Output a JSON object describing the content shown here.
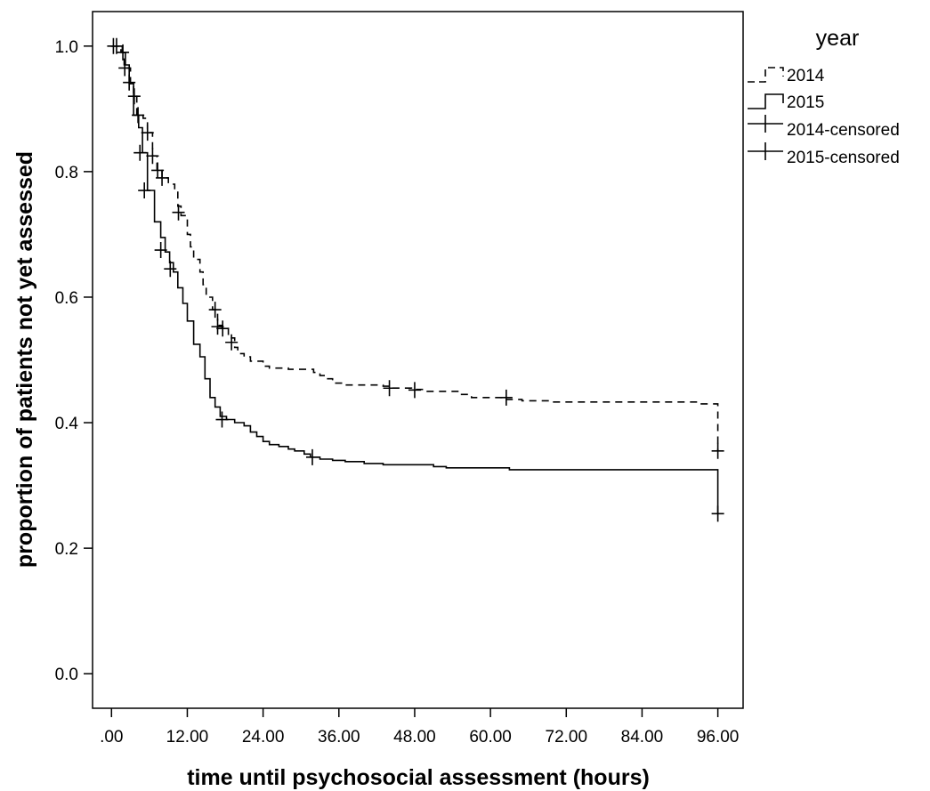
{
  "chart_data": {
    "type": "line",
    "subtype": "kaplan-meier step curves",
    "xlabel": "time until psychosocial assessment (hours)",
    "ylabel": "proportion of patients not yet assessed",
    "xlim": [
      -3,
      100
    ],
    "ylim": [
      -0.055,
      1.055
    ],
    "x_ticks": [
      0,
      12,
      24,
      36,
      48,
      60,
      72,
      84,
      96
    ],
    "x_tick_labels": [
      ".00",
      "12.00",
      "24.00",
      "36.00",
      "48.00",
      "60.00",
      "72.00",
      "84.00",
      "96.00"
    ],
    "y_ticks": [
      0.0,
      0.2,
      0.4,
      0.6,
      0.8,
      1.0
    ],
    "y_tick_labels": [
      "0.0",
      "0.2",
      "0.4",
      "0.6",
      "0.8",
      "1.0"
    ],
    "grid": false,
    "legend": {
      "title": "year",
      "position": "right, outside plot",
      "entries": [
        "2014",
        "2015",
        "2014-censored",
        "2015-censored"
      ]
    },
    "series": [
      {
        "name": "2014",
        "line_style": "dashed",
        "color": "#000000",
        "steps": [
          [
            0,
            1.0
          ],
          [
            1.5,
            0.99
          ],
          [
            2.0,
            0.965
          ],
          [
            3.0,
            0.94
          ],
          [
            3.5,
            0.92
          ],
          [
            4.0,
            0.89
          ],
          [
            5.0,
            0.885
          ],
          [
            5.7,
            0.862
          ],
          [
            6.5,
            0.825
          ],
          [
            7.2,
            0.802
          ],
          [
            8.0,
            0.79
          ],
          [
            9.0,
            0.78
          ],
          [
            10.0,
            0.77
          ],
          [
            10.5,
            0.745
          ],
          [
            11.0,
            0.73
          ],
          [
            12.0,
            0.7
          ],
          [
            12.5,
            0.68
          ],
          [
            13.0,
            0.66
          ],
          [
            14.0,
            0.64
          ],
          [
            14.5,
            0.62
          ],
          [
            15.0,
            0.6
          ],
          [
            16.0,
            0.58
          ],
          [
            16.8,
            0.555
          ],
          [
            17.5,
            0.55
          ],
          [
            18.5,
            0.535
          ],
          [
            19.5,
            0.52
          ],
          [
            20.0,
            0.51
          ],
          [
            21.0,
            0.505
          ],
          [
            22.0,
            0.498
          ],
          [
            24.0,
            0.49
          ],
          [
            25.0,
            0.487
          ],
          [
            28.0,
            0.485
          ],
          [
            32.0,
            0.48
          ],
          [
            33.0,
            0.475
          ],
          [
            34.0,
            0.47
          ],
          [
            35.0,
            0.463
          ],
          [
            37.0,
            0.46
          ],
          [
            43.0,
            0.458
          ],
          [
            44.0,
            0.455
          ],
          [
            47.5,
            0.453
          ],
          [
            50.0,
            0.45
          ],
          [
            55.0,
            0.445
          ],
          [
            57.0,
            0.44
          ],
          [
            62.5,
            0.437
          ],
          [
            65.0,
            0.435
          ],
          [
            70.0,
            0.433
          ],
          [
            93.0,
            0.43
          ],
          [
            96.0,
            0.43
          ]
        ],
        "final_drop": [
          96.0,
          0.355
        ]
      },
      {
        "name": "2015",
        "line_style": "solid",
        "color": "#000000",
        "steps": [
          [
            0,
            1.0
          ],
          [
            1.7,
            0.99
          ],
          [
            2.2,
            0.97
          ],
          [
            2.8,
            0.94
          ],
          [
            3.5,
            0.89
          ],
          [
            4.3,
            0.87
          ],
          [
            4.9,
            0.83
          ],
          [
            5.7,
            0.77
          ],
          [
            6.8,
            0.72
          ],
          [
            7.8,
            0.695
          ],
          [
            8.5,
            0.672
          ],
          [
            9.2,
            0.655
          ],
          [
            9.8,
            0.64
          ],
          [
            10.5,
            0.615
          ],
          [
            11.3,
            0.59
          ],
          [
            12.0,
            0.562
          ],
          [
            13.0,
            0.525
          ],
          [
            14.0,
            0.505
          ],
          [
            14.8,
            0.47
          ],
          [
            15.6,
            0.44
          ],
          [
            16.4,
            0.425
          ],
          [
            17.2,
            0.41
          ],
          [
            18.2,
            0.405
          ],
          [
            19.5,
            0.4
          ],
          [
            21.0,
            0.395
          ],
          [
            22.0,
            0.385
          ],
          [
            23.0,
            0.378
          ],
          [
            24.0,
            0.37
          ],
          [
            25.0,
            0.365
          ],
          [
            26.5,
            0.362
          ],
          [
            28.0,
            0.358
          ],
          [
            29.0,
            0.355
          ],
          [
            30.5,
            0.35
          ],
          [
            31.5,
            0.345
          ],
          [
            33.0,
            0.342
          ],
          [
            35.0,
            0.34
          ],
          [
            37.0,
            0.338
          ],
          [
            40.0,
            0.335
          ],
          [
            43.0,
            0.333
          ],
          [
            51.0,
            0.33
          ],
          [
            53.0,
            0.328
          ],
          [
            63.0,
            0.325
          ],
          [
            96.0,
            0.325
          ]
        ],
        "final_drop": [
          96.0,
          0.255
        ]
      }
    ],
    "censored": [
      {
        "series": "2014",
        "points": [
          [
            0.3,
            1.0
          ],
          [
            1.8,
            0.99
          ],
          [
            3.6,
            0.92
          ],
          [
            4.2,
            0.89
          ],
          [
            5.7,
            0.862
          ],
          [
            6.5,
            0.825
          ],
          [
            7.3,
            0.802
          ],
          [
            8.0,
            0.79
          ],
          [
            10.6,
            0.735
          ],
          [
            16.8,
            0.553
          ],
          [
            17.6,
            0.55
          ],
          [
            19.0,
            0.528
          ],
          [
            44.0,
            0.455
          ],
          [
            48.0,
            0.452
          ],
          [
            62.5,
            0.44
          ],
          [
            96.0,
            0.355
          ]
        ]
      },
      {
        "series": "2015",
        "points": [
          [
            0.8,
            1.0
          ],
          [
            2.1,
            0.965
          ],
          [
            2.8,
            0.942
          ],
          [
            4.5,
            0.83
          ],
          [
            5.2,
            0.77
          ],
          [
            7.8,
            0.675
          ],
          [
            9.3,
            0.645
          ],
          [
            16.4,
            0.58
          ],
          [
            17.5,
            0.405
          ],
          [
            31.8,
            0.345
          ],
          [
            96.0,
            0.255
          ]
        ]
      }
    ]
  }
}
